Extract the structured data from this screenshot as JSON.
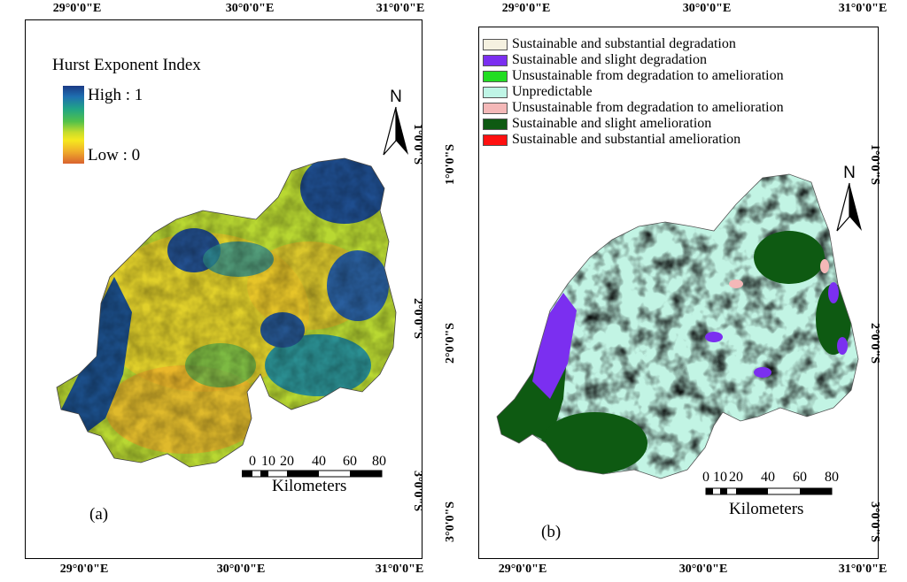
{
  "panel_a": {
    "label": "(a)",
    "lon_ticks": [
      "29°0'0\"E",
      "30°0'0\"E",
      "31°0'0\"E"
    ],
    "lat_ticks": [
      "1°0'0\"S",
      "2°0'0\"S",
      "3°0'0\"S"
    ],
    "legend": {
      "title": "Hurst Exponent Index",
      "high": "High : 1",
      "low": "Low : 0"
    },
    "scale": {
      "ticks": [
        "0",
        "10",
        "20",
        "40",
        "60",
        "80"
      ],
      "unit": "Kilometers"
    },
    "north": "N"
  },
  "panel_b": {
    "label": "(b)",
    "lon_ticks": [
      "29°0'0\"E",
      "30°0'0\"E",
      "31°0'0\"E"
    ],
    "lat_ticks": [
      "1°0'0\"S",
      "2°0'0\"S",
      "3°0'0\"S"
    ],
    "legend": [
      {
        "label": "Sustainable and substantial degradation",
        "color": "#f5f1e0"
      },
      {
        "label": "Sustainable and slight degradation",
        "color": "#7b2ff0"
      },
      {
        "label": "Unsustainable from degradation to amelioration",
        "color": "#22dd22"
      },
      {
        "label": "Unpredictable",
        "color": "#bff5e6"
      },
      {
        "label": "Unsustainable from degradation to amelioration",
        "color": "#f4b8b8"
      },
      {
        "label": "Sustainable and slight amelioration",
        "color": "#0e5a12"
      },
      {
        "label": "Sustainable and substantial amelioration",
        "color": "#ff1010"
      }
    ],
    "scale": {
      "ticks": [
        "0",
        "10",
        "20",
        "40",
        "60",
        "80"
      ],
      "unit": "Kilometers"
    },
    "north": "N"
  }
}
